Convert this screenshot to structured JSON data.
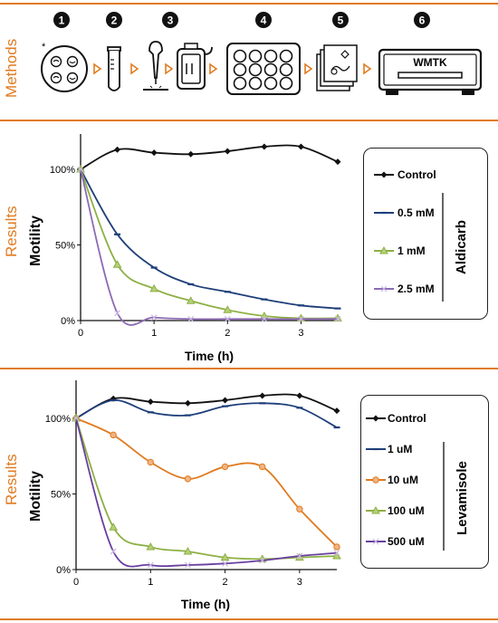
{
  "sections": {
    "methods_label": "Methods",
    "results_label_1": "Results",
    "results_label_2": "Results"
  },
  "methods": {
    "steps": [
      "1",
      "2",
      "3",
      "4",
      "5",
      "6"
    ],
    "device_label": "WMTK",
    "asterisk": "*"
  },
  "chart_data": [
    {
      "type": "line",
      "title": "",
      "xlabel": "Time (h)",
      "ylabel": "Motility",
      "xlim": [
        0,
        3.5
      ],
      "ylim": [
        0,
        100
      ],
      "x_ticks": [
        "0",
        "1",
        "2",
        "3"
      ],
      "y_ticks": [
        "0%",
        "50%",
        "100%"
      ],
      "legend_group": "Aldicarb",
      "legend_placement": "right",
      "series": [
        {
          "name": "Control",
          "color": "#111111",
          "marker": "diamond",
          "x": [
            0,
            0.5,
            1,
            1.5,
            2,
            2.5,
            3,
            3.5
          ],
          "y": [
            100,
            113,
            111,
            110,
            112,
            115,
            115,
            105
          ]
        },
        {
          "name": "0.5 mM",
          "color": "#1f3f7a",
          "marker": "dash",
          "x": [
            0,
            0.5,
            1,
            1.5,
            2,
            2.5,
            3,
            3.5
          ],
          "y": [
            100,
            57,
            35,
            24,
            19,
            14,
            10,
            8
          ]
        },
        {
          "name": "1 mM",
          "color": "#8db043",
          "marker": "triangle",
          "x": [
            0,
            0.5,
            1,
            1.5,
            2,
            2.5,
            3,
            3.5
          ],
          "y": [
            100,
            37,
            21,
            13,
            7,
            3,
            1.5,
            1.5
          ]
        },
        {
          "name": "2.5 mM",
          "color": "#8e6bb5",
          "marker": "cross",
          "x": [
            0,
            0.5,
            1,
            1.5,
            2,
            2.5,
            3,
            3.5
          ],
          "y": [
            100,
            5,
            2,
            1,
            1,
            1,
            1,
            1
          ]
        }
      ]
    },
    {
      "type": "line",
      "title": "",
      "xlabel": "Time (h)",
      "ylabel": "Motility",
      "xlim": [
        0,
        3.5
      ],
      "ylim": [
        0,
        100
      ],
      "x_ticks": [
        "0",
        "1",
        "2",
        "3"
      ],
      "y_ticks": [
        "0%",
        "50%",
        "100%"
      ],
      "legend_group": "Levamisole",
      "legend_placement": "right",
      "series": [
        {
          "name": "Control",
          "color": "#111111",
          "marker": "diamond",
          "x": [
            0,
            0.5,
            1,
            1.5,
            2,
            2.5,
            3,
            3.5
          ],
          "y": [
            100,
            113,
            111,
            110,
            112,
            115,
            115,
            105
          ]
        },
        {
          "name": "1 uM",
          "color": "#1f3f7a",
          "marker": "dash",
          "x": [
            0,
            0.5,
            1,
            1.5,
            2,
            2.5,
            3,
            3.5
          ],
          "y": [
            100,
            112,
            104,
            102,
            108,
            110,
            107,
            94
          ]
        },
        {
          "name": "10 uM",
          "color": "#e07b20",
          "marker": "circle",
          "x": [
            0,
            0.5,
            1,
            1.5,
            2,
            2.5,
            3,
            3.5
          ],
          "y": [
            100,
            89,
            71,
            60,
            68,
            68,
            40,
            15
          ]
        },
        {
          "name": "100 uM",
          "color": "#8db043",
          "marker": "triangle",
          "x": [
            0,
            0.5,
            1,
            1.5,
            2,
            2.5,
            3,
            3.5
          ],
          "y": [
            100,
            28,
            15,
            12,
            8,
            7,
            8,
            9
          ]
        },
        {
          "name": "500 uM",
          "color": "#6a3fa0",
          "marker": "cross",
          "x": [
            0,
            0.5,
            1,
            1.5,
            2,
            2.5,
            3,
            3.5
          ],
          "y": [
            100,
            12,
            3,
            3,
            4,
            6,
            9,
            11
          ]
        }
      ]
    }
  ]
}
